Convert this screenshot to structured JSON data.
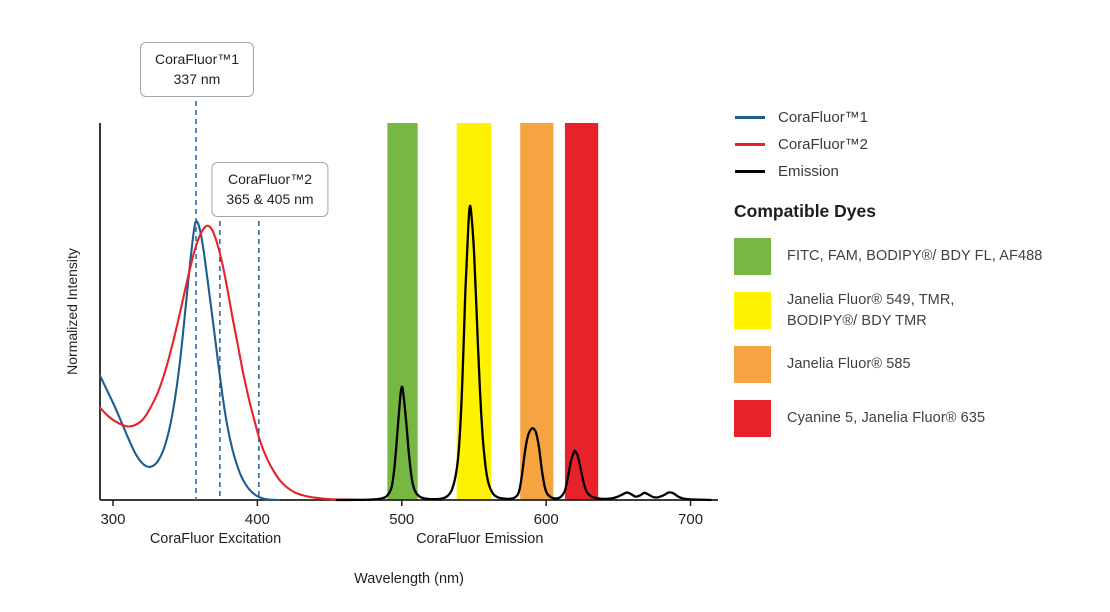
{
  "chart_data": {
    "type": "line",
    "xlabel": "Wavelength (nm)",
    "ylabel": "Normalized Intensity",
    "xlim": [
      291,
      719
    ],
    "ylim": [
      0,
      1
    ],
    "x_ticks": [
      300,
      400,
      500,
      600,
      700
    ],
    "grid": false,
    "legend_position": "top-right",
    "x_section_labels": [
      {
        "label": "CoraFluor Excitation",
        "center_nm": 371
      },
      {
        "label": "CoraFluor Emission",
        "center_nm": 554
      }
    ],
    "annotations": [
      {
        "title": "CoraFluor™1",
        "subtitle": "337 nm",
        "lines_nm": [
          357.5
        ]
      },
      {
        "title": "CoraFluor™2",
        "subtitle": "365 & 405 nm",
        "lines_nm": [
          374,
          401
        ]
      }
    ],
    "annotation_line_color": "#2e6ba8",
    "bands": [
      {
        "name": "green",
        "from_nm": 490,
        "to_nm": 511,
        "color": "#77b843"
      },
      {
        "name": "yellow",
        "from_nm": 538,
        "to_nm": 562,
        "color": "#fef200"
      },
      {
        "name": "orange",
        "from_nm": 582,
        "to_nm": 605,
        "color": "#f6a441"
      },
      {
        "name": "red",
        "from_nm": 613,
        "to_nm": 636,
        "color": "#e8222a"
      }
    ],
    "series": [
      {
        "name": "CoraFluor™1",
        "color": "#1d5c8f",
        "points": [
          [
            291,
            0.33
          ],
          [
            296,
            0.29
          ],
          [
            301,
            0.25
          ],
          [
            306,
            0.205
          ],
          [
            311,
            0.16
          ],
          [
            316,
            0.12
          ],
          [
            321,
            0.095
          ],
          [
            326,
            0.088
          ],
          [
            331,
            0.103
          ],
          [
            336,
            0.145
          ],
          [
            341,
            0.225
          ],
          [
            346,
            0.355
          ],
          [
            350,
            0.5
          ],
          [
            354,
            0.65
          ],
          [
            357,
            0.735
          ],
          [
            360,
            0.72
          ],
          [
            363,
            0.655
          ],
          [
            367,
            0.54
          ],
          [
            371,
            0.42
          ],
          [
            375,
            0.3
          ],
          [
            379,
            0.2
          ],
          [
            383,
            0.13
          ],
          [
            388,
            0.07
          ],
          [
            393,
            0.035
          ],
          [
            398,
            0.015
          ],
          [
            403,
            0.005
          ],
          [
            408,
            0.001
          ],
          [
            415,
            0
          ]
        ]
      },
      {
        "name": "CoraFluor™2",
        "color": "#e8222a",
        "points": [
          [
            291,
            0.245
          ],
          [
            296,
            0.225
          ],
          [
            301,
            0.21
          ],
          [
            306,
            0.2
          ],
          [
            311,
            0.195
          ],
          [
            316,
            0.2
          ],
          [
            321,
            0.215
          ],
          [
            326,
            0.245
          ],
          [
            331,
            0.285
          ],
          [
            336,
            0.34
          ],
          [
            341,
            0.41
          ],
          [
            346,
            0.49
          ],
          [
            351,
            0.575
          ],
          [
            356,
            0.655
          ],
          [
            360,
            0.7
          ],
          [
            364,
            0.725
          ],
          [
            367,
            0.725
          ],
          [
            370,
            0.705
          ],
          [
            374,
            0.655
          ],
          [
            378,
            0.585
          ],
          [
            382,
            0.5
          ],
          [
            386,
            0.42
          ],
          [
            390,
            0.34
          ],
          [
            394,
            0.27
          ],
          [
            398,
            0.21
          ],
          [
            402,
            0.155
          ],
          [
            406,
            0.115
          ],
          [
            410,
            0.085
          ],
          [
            415,
            0.055
          ],
          [
            420,
            0.035
          ],
          [
            426,
            0.02
          ],
          [
            432,
            0.012
          ],
          [
            440,
            0.006
          ],
          [
            450,
            0.002
          ],
          [
            462,
            0.001
          ],
          [
            472,
            0
          ]
        ]
      },
      {
        "name": "Emission",
        "color": "#000000",
        "points": [
          [
            455,
            0
          ],
          [
            478,
            0.001
          ],
          [
            486,
            0.004
          ],
          [
            490,
            0.012
          ],
          [
            493,
            0.035
          ],
          [
            495,
            0.09
          ],
          [
            497,
            0.18
          ],
          [
            499,
            0.275
          ],
          [
            500,
            0.3
          ],
          [
            501,
            0.285
          ],
          [
            503,
            0.21
          ],
          [
            505,
            0.12
          ],
          [
            507,
            0.055
          ],
          [
            509,
            0.025
          ],
          [
            512,
            0.01
          ],
          [
            516,
            0.004
          ],
          [
            522,
            0.002
          ],
          [
            528,
            0.004
          ],
          [
            532,
            0.012
          ],
          [
            535,
            0.03
          ],
          [
            538,
            0.08
          ],
          [
            540,
            0.16
          ],
          [
            542,
            0.32
          ],
          [
            544,
            0.55
          ],
          [
            546,
            0.72
          ],
          [
            547,
            0.775
          ],
          [
            548,
            0.765
          ],
          [
            550,
            0.66
          ],
          [
            552,
            0.48
          ],
          [
            554,
            0.3
          ],
          [
            556,
            0.17
          ],
          [
            558,
            0.09
          ],
          [
            560,
            0.045
          ],
          [
            563,
            0.018
          ],
          [
            566,
            0.008
          ],
          [
            570,
            0.004
          ],
          [
            574,
            0.003
          ],
          [
            578,
            0.006
          ],
          [
            581,
            0.02
          ],
          [
            583,
            0.06
          ],
          [
            585,
            0.12
          ],
          [
            587,
            0.165
          ],
          [
            589,
            0.185
          ],
          [
            591,
            0.19
          ],
          [
            593,
            0.178
          ],
          [
            595,
            0.14
          ],
          [
            597,
            0.08
          ],
          [
            599,
            0.035
          ],
          [
            601,
            0.015
          ],
          [
            604,
            0.006
          ],
          [
            607,
            0.004
          ],
          [
            610,
            0.008
          ],
          [
            613,
            0.025
          ],
          [
            615,
            0.06
          ],
          [
            617,
            0.1
          ],
          [
            619,
            0.125
          ],
          [
            620,
            0.13
          ],
          [
            622,
            0.115
          ],
          [
            624,
            0.08
          ],
          [
            626,
            0.045
          ],
          [
            628,
            0.022
          ],
          [
            631,
            0.01
          ],
          [
            635,
            0.005
          ],
          [
            640,
            0.003
          ],
          [
            645,
            0.004
          ],
          [
            649,
            0.008
          ],
          [
            653,
            0.015
          ],
          [
            656,
            0.02
          ],
          [
            659,
            0.015
          ],
          [
            662,
            0.009
          ],
          [
            665,
            0.012
          ],
          [
            668,
            0.019
          ],
          [
            671,
            0.014
          ],
          [
            674,
            0.008
          ],
          [
            677,
            0.007
          ],
          [
            681,
            0.012
          ],
          [
            685,
            0.02
          ],
          [
            688,
            0.018
          ],
          [
            691,
            0.01
          ],
          [
            694,
            0.005
          ],
          [
            698,
            0.002
          ],
          [
            705,
            0.001
          ],
          [
            714,
            0
          ]
        ]
      }
    ]
  },
  "legend": {
    "items": [
      {
        "label": "CoraFluor™1",
        "color": "#1d5c8f"
      },
      {
        "label": "CoraFluor™2",
        "color": "#e8222a"
      },
      {
        "label": "Emission",
        "color": "#000000"
      }
    ]
  },
  "dyes": {
    "heading": "Compatible Dyes",
    "items": [
      {
        "label": "FITC, FAM, BODIPY®/ BDY FL, AF488",
        "color": "#77b843"
      },
      {
        "label": "Janelia Fluor® 549, TMR,\nBODIPY®/ BDY TMR",
        "color": "#fef200"
      },
      {
        "label": "Janelia Fluor® 585",
        "color": "#f6a441"
      },
      {
        "label": "Cyanine 5, Janelia Fluor® 635",
        "color": "#e8222a"
      }
    ]
  }
}
